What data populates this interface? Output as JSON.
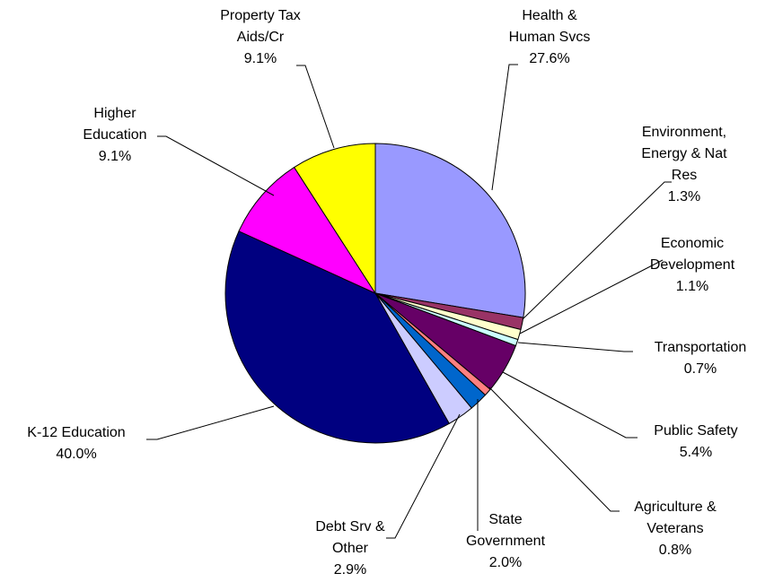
{
  "chart_data": {
    "type": "pie",
    "categories": [
      "Health &\nHuman Svcs",
      "Environment,\nEnergy & Nat\nRes",
      "Economic\nDevelopment",
      "Transportation",
      "Public Safety",
      "Agriculture &\nVeterans",
      "State\nGovernment",
      "Debt Srv &\nOther",
      "K-12 Education",
      "Higher\nEducation",
      "Property Tax\nAids/Cr"
    ],
    "values": [
      27.6,
      1.3,
      1.1,
      0.7,
      5.4,
      0.8,
      2.0,
      2.9,
      40.0,
      9.1,
      9.1
    ],
    "value_labels": [
      "27.6%",
      "1.3%",
      "1.1%",
      "0.7%",
      "5.4%",
      "0.8%",
      "2.0%",
      "2.9%",
      "40.0%",
      "9.1%",
      "9.1%"
    ],
    "colors": [
      "#9999ff",
      "#993366",
      "#ffffcc",
      "#ccffff",
      "#660066",
      "#ff8080",
      "#0066cc",
      "#ccccff",
      "#000080",
      "#ff00ff",
      "#ffff00"
    ]
  }
}
